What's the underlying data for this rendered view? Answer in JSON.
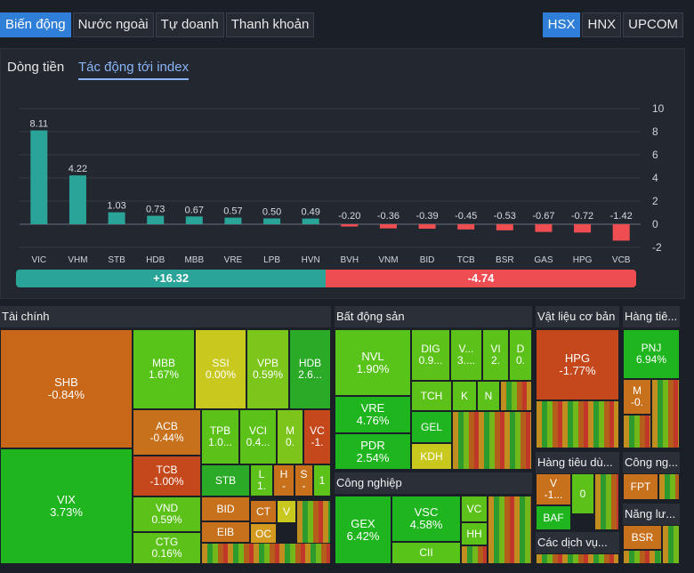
{
  "tabs": [
    "Biến động",
    "Nước ngoài",
    "Tự doanh",
    "Thanh khoản"
  ],
  "exchanges": [
    "HSX",
    "HNX",
    "UPCOM"
  ],
  "subtabs": [
    "Dòng tiền",
    "Tác động tới index"
  ],
  "colors": {
    "positive": "#2aa398",
    "negative": "#ee4e52",
    "active_tab": "#2f7fd8"
  },
  "chart_data": {
    "type": "bar",
    "categories": [
      "VIC",
      "VHM",
      "STB",
      "HDB",
      "MBB",
      "VRE",
      "LPB",
      "HVN",
      "BVH",
      "VNM",
      "BID",
      "TCB",
      "BSR",
      "GAS",
      "HPG",
      "VCB"
    ],
    "values": [
      8.11,
      4.22,
      1.03,
      0.73,
      0.67,
      0.57,
      0.5,
      0.49,
      -0.2,
      -0.36,
      -0.39,
      -0.45,
      -0.53,
      -0.67,
      -0.72,
      -1.42
    ],
    "value_labels": [
      "8.11",
      "4.22",
      "1.03",
      "0.73",
      "0.67",
      "0.57",
      "0.50",
      "0.49",
      "-0.20",
      "-0.36",
      "-0.39",
      "-0.45",
      "-0.53",
      "-0.67",
      "-0.72",
      "-1.42"
    ],
    "yticks": [
      "10",
      "8",
      "6",
      "4",
      "2",
      "0",
      "-2"
    ],
    "ylim": [
      -2,
      10
    ],
    "grid": true
  },
  "summary": {
    "positive": "+16.32",
    "negative": "-4.74"
  },
  "sectors": {
    "finance": "Tài chính",
    "realestate": "Bất động sản",
    "materials": "Vật liệu cơ bản",
    "goods": "Hàng tiê...",
    "industry": "Công nghiệp",
    "consumer": "Hàng tiêu dù...",
    "tech": "Công ng...",
    "energy": "Năng lư...",
    "services": "Các dịch vụ..."
  },
  "tiles": {
    "SHB": [
      "SHB",
      "-0.84%"
    ],
    "VIX": [
      "VIX",
      "3.73%"
    ],
    "MBB": [
      "MBB",
      "1.67%"
    ],
    "SSI": [
      "SSI",
      "0.00%"
    ],
    "VPB": [
      "VPB",
      "0.59%"
    ],
    "HDB": [
      "HDB",
      "2.6..."
    ],
    "ACB": [
      "ACB",
      "-0.44%"
    ],
    "TCB": [
      "TCB",
      "-1.00%"
    ],
    "VND": [
      "VND",
      "0.59%"
    ],
    "CTG": [
      "CTG",
      "0.16%"
    ],
    "TPB": [
      "TPB",
      "1.0..."
    ],
    "VCI": [
      "VCI",
      "0.4..."
    ],
    "M": [
      "M",
      "0."
    ],
    "VC": [
      "VC",
      "-1."
    ],
    "STB": "STB",
    "L": [
      "L",
      "1."
    ],
    "H": [
      "H",
      "-"
    ],
    "S": [
      "S",
      "-"
    ],
    "1": "1",
    "BID": "BID",
    "CT": "CT",
    "V": "V",
    "EIB": "EIB",
    "OC": "OC",
    "NVL": [
      "NVL",
      "1.90%"
    ],
    "DIG": [
      "DIG",
      "0.9..."
    ],
    "V3": [
      "V...",
      "3...."
    ],
    "VI": [
      "VI",
      "2."
    ],
    "D": [
      "D",
      "0."
    ],
    "TCH": "TCH",
    "K": "K",
    "N": "N",
    "VRE": [
      "VRE",
      "4.76%"
    ],
    "GEL": "GEL",
    "PDR": [
      "PDR",
      "2.54%"
    ],
    "KDH": "KDH",
    "GEX": [
      "GEX",
      "6.42%"
    ],
    "VSC": [
      "VSC",
      "4.58%"
    ],
    "VC2": "VC",
    "HH": "HH",
    "CII": "CII",
    "HPG": [
      "HPG",
      "-1.77%"
    ],
    "PNJ": [
      "PNJ",
      "6.94%"
    ],
    "M2": [
      "M",
      "-0."
    ],
    "V1": [
      "V",
      "-1..."
    ],
    "ZERO": "0",
    "BAF": "BAF",
    "FPT": "FPT",
    "BSR": "BSR"
  }
}
